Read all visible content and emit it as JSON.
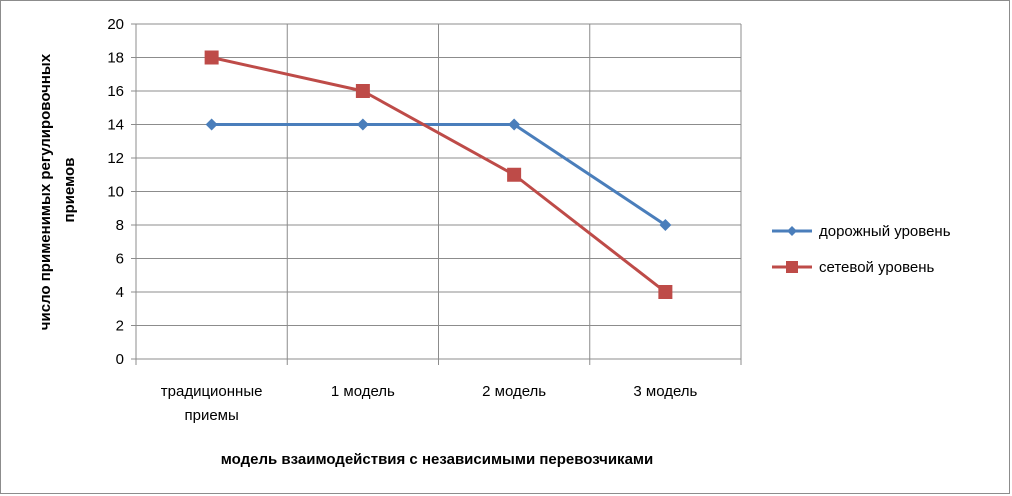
{
  "chart_data": {
    "type": "line",
    "categories": [
      [
        "традиционные",
        "приемы"
      ],
      [
        "1 модель"
      ],
      [
        "2 модель"
      ],
      [
        "3 модель"
      ]
    ],
    "series": [
      {
        "name": "дорожный уровень",
        "values": [
          14,
          14,
          14,
          8
        ],
        "color": "#4a7ebb",
        "marker": "diamond"
      },
      {
        "name": "сетевой уровень",
        "values": [
          18,
          16,
          11,
          4
        ],
        "color": "#be4b48",
        "marker": "square"
      }
    ],
    "xlabel": "модель взаимодействия с независимыми перевозчиками",
    "ylabel": [
      "число применимых регулировочных",
      "приемов"
    ],
    "ylim": [
      0,
      20
    ],
    "yticks": [
      "0",
      "2",
      "4",
      "6",
      "8",
      "10",
      "12",
      "14",
      "16",
      "18",
      "20"
    ],
    "grid": true,
    "legend": "right"
  }
}
